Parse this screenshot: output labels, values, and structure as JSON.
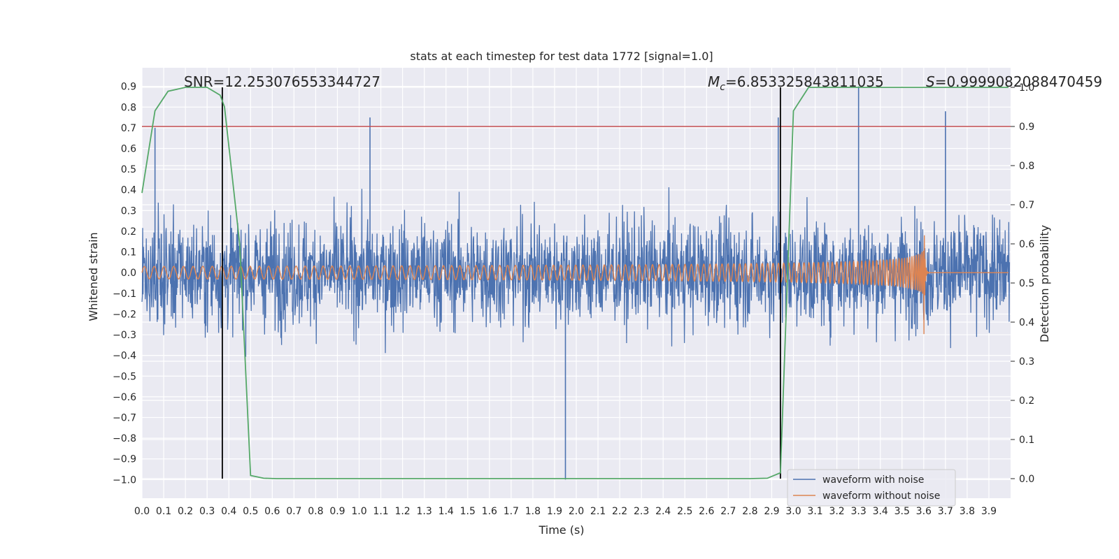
{
  "chart_data": {
    "type": "line",
    "title": "stats at each timestep for test data 1772 [signal=1.0]",
    "xlabel": "Time (s)",
    "ylabel": "Whitened strain",
    "ylabel_right": "Detection probability",
    "xlim": [
      0.0,
      4.0
    ],
    "ylim": [
      -1.09,
      0.99
    ],
    "ylim_right": [
      -0.05,
      1.05
    ],
    "x_ticks": [
      "0.0",
      "0.1",
      "0.2",
      "0.3",
      "0.4",
      "0.5",
      "0.6",
      "0.7",
      "0.8",
      "0.9",
      "1.0",
      "1.1",
      "1.2",
      "1.3",
      "1.4",
      "1.5",
      "1.6",
      "1.7",
      "1.8",
      "1.9",
      "2.0",
      "2.1",
      "2.2",
      "2.3",
      "2.4",
      "2.5",
      "2.6",
      "2.7",
      "2.8",
      "2.9",
      "3.0",
      "3.1",
      "3.2",
      "3.3",
      "3.4",
      "3.5",
      "3.6",
      "3.7",
      "3.8",
      "3.9"
    ],
    "y_ticks": [
      "0.9",
      "0.8",
      "0.7",
      "0.6",
      "0.5",
      "0.4",
      "0.3",
      "0.2",
      "0.1",
      "0.0",
      "−0.1",
      "−0.2",
      "−0.3",
      "−0.4",
      "−0.5",
      "−0.6",
      "−0.7",
      "−0.8",
      "−0.9",
      "−1.0"
    ],
    "y_ticks_right": [
      "1.0",
      "0.9",
      "0.8",
      "0.7",
      "0.6",
      "0.5",
      "0.4",
      "0.3",
      "0.2",
      "0.1",
      "0.0"
    ],
    "annotations": {
      "snr": "SNR=12.253076553344727",
      "mc_symbol": "M",
      "mc_sub": "c",
      "mc_value": "=6.853325843811035",
      "s_symbol": "S",
      "s_value": "=0.9999082088470459"
    },
    "series": [
      {
        "name": "waveform with noise",
        "color": "#4c72b0",
        "description": "whitened strain with noise, roughly uniform amplitude ~0.3 with spikes up to 0.9 and down to -1.0",
        "approx_envelope": 0.33,
        "notable_peaks": [
          [
            0.06,
            0.7
          ],
          [
            1.05,
            0.75
          ],
          [
            1.95,
            -1.0
          ],
          [
            2.93,
            0.75
          ],
          [
            3.3,
            0.9
          ],
          [
            3.7,
            0.78
          ]
        ]
      },
      {
        "name": "waveform without noise",
        "color": "#dd8452",
        "description": "chirp signal, amplitude grows from ~0.03 to ~0.37 and frequency increases until merger near 3.6 s, then ringdown to 0",
        "start_amplitude": 0.03,
        "peak_amplitude": 0.37,
        "merger_time": 3.6
      },
      {
        "name": "detection probability",
        "axis": "right",
        "color": "#55a868",
        "x": [
          0.0,
          0.06,
          0.12,
          0.2,
          0.3,
          0.36,
          0.38,
          0.45,
          0.5,
          0.56,
          0.62,
          1.0,
          2.0,
          2.8,
          2.88,
          2.94,
          3.0,
          3.07,
          3.15,
          3.5,
          3.99
        ],
        "y": [
          0.73,
          0.94,
          0.99,
          1.0,
          1.0,
          0.98,
          0.95,
          0.6,
          0.008,
          0.001,
          0.0,
          0.0,
          0.0,
          0.0,
          0.001,
          0.015,
          0.94,
          1.0,
          1.0,
          1.0,
          1.0
        ]
      }
    ],
    "hlines": [
      {
        "axis": "right",
        "y": 0.9,
        "color": "#c44e52",
        "description": "detection threshold"
      }
    ],
    "vlines": [
      {
        "x": 0.37,
        "color": "#000000"
      },
      {
        "x": 2.94,
        "color": "#000000"
      }
    ],
    "legend": {
      "position": "bottom-right",
      "entries": [
        "waveform with noise",
        "waveform without noise"
      ]
    },
    "grid": true,
    "background": "#eaeaf2"
  }
}
